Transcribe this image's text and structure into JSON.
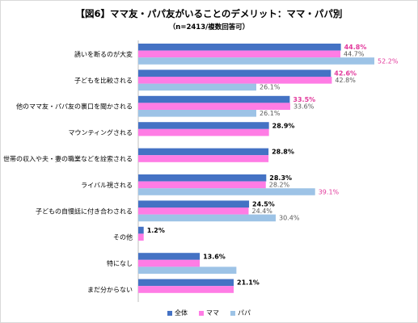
{
  "header": {
    "title": "【図6】ママ友・パパ友がいることのデメリット：ママ・パパ別",
    "subtitle": "（n=2413/複数回答可）"
  },
  "chart_data": {
    "type": "bar",
    "orientation": "horizontal",
    "title": "【図6】ママ友・パパ友がいることのデメリット：ママ・パパ別",
    "subtitle": "（n=2413/複数回答可）",
    "categories": [
      "誘いを断るのが大変",
      "子どもを比較される",
      "他のママ友・パパ友の裏口を聞かされる",
      "マウンティングされる",
      "世帯の収入や夫・妻の職業などを詮索される",
      "ライバル視される",
      "子どもの自慢話に付き合わされる",
      "その他",
      "特になし",
      "まだ分からない"
    ],
    "series": [
      {
        "name": "全体",
        "color": "#4472c4",
        "values": [
          44.8,
          42.6,
          33.5,
          28.9,
          28.8,
          28.3,
          24.5,
          1.2,
          13.6,
          21.1
        ],
        "labels": [
          "",
          "",
          "",
          "28.9%",
          "28.8%",
          "28.3%",
          "24.5%",
          "1.2%",
          "13.6%",
          "21.1%"
        ]
      },
      {
        "name": "ママ",
        "color": "#ff7ce5",
        "values": [
          44.7,
          42.8,
          33.6,
          28.9,
          28.8,
          28.2,
          24.4,
          1.2,
          13.6,
          21.1
        ],
        "labels": [
          "44.7%",
          "42.8%",
          "33.6%",
          "",
          "",
          "28.2%",
          "24.4%",
          "",
          "",
          ""
        ]
      },
      {
        "name": "パパ",
        "color": "#9dc3e6",
        "values": [
          52.2,
          26.1,
          26.1,
          0,
          0,
          39.1,
          30.4,
          0,
          21.7,
          0
        ],
        "labels": [
          "52.2%",
          "26.1%",
          "26.1%",
          "",
          "",
          "39.1%",
          "30.4%",
          "",
          "",
          ""
        ]
      }
    ],
    "highlight_labels": [
      {
        "category_index": 0,
        "text": "44.8%",
        "color": "#e2389b"
      },
      {
        "category_index": 1,
        "text": "42.6%",
        "color": "#e2389b"
      },
      {
        "category_index": 2,
        "text": "33.5%",
        "color": "#e2389b"
      }
    ],
    "xlim": [
      0,
      60
    ],
    "grid": false,
    "legend": "bottom-center"
  }
}
